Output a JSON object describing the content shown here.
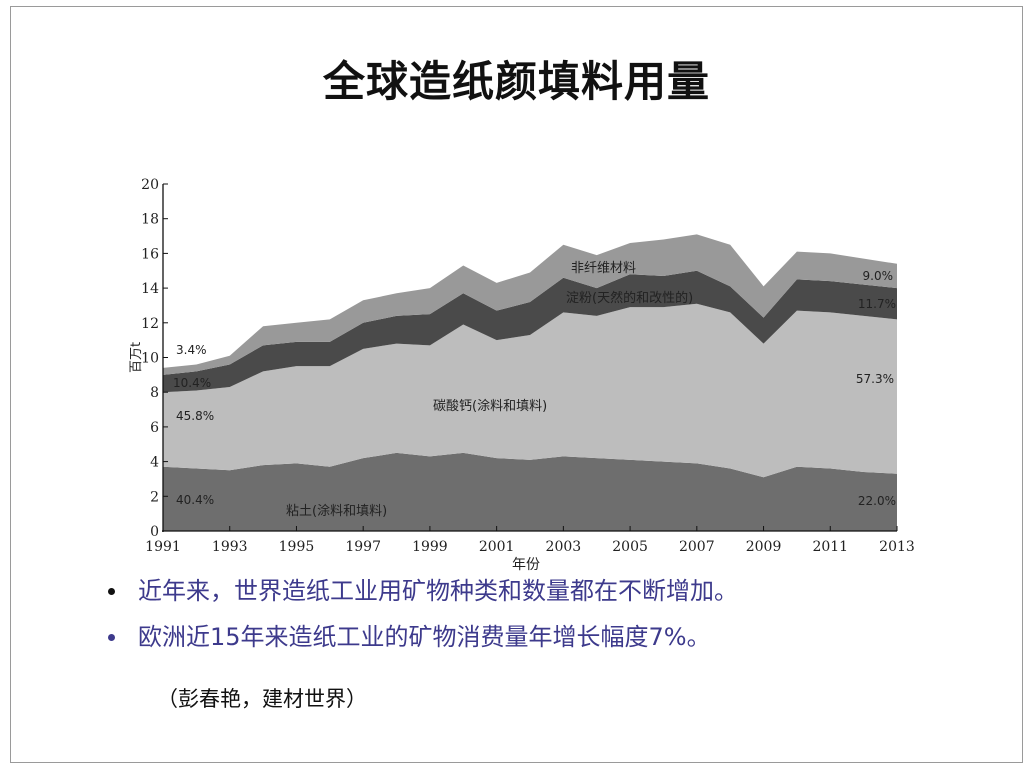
{
  "slide": {
    "title": "全球造纸颜填料用量",
    "bullets": [
      {
        "text": "近年来，世界造纸工业用矿物种类和数量都在不断增加。",
        "dot_color": "#111111"
      },
      {
        "text": "欧洲近15年来造纸工业的矿物消费量年增长幅度7%。",
        "dot_color": "#3d3a8c"
      }
    ],
    "citation": "（彭春艳，建材世界）"
  },
  "chart_data": {
    "type": "area",
    "stacked": true,
    "x": [
      1991,
      1992,
      1993,
      1994,
      1995,
      1996,
      1997,
      1998,
      1999,
      2000,
      2001,
      2002,
      2003,
      2004,
      2005,
      2006,
      2007,
      2008,
      2009,
      2010,
      2011,
      2012,
      2013
    ],
    "xticks": [
      "1991",
      "1993",
      "1995",
      "1997",
      "1999",
      "2001",
      "2003",
      "2005",
      "2007",
      "2009",
      "2011",
      "2013"
    ],
    "yticks": [
      "0",
      "2",
      "4",
      "6",
      "8",
      "10",
      "12",
      "14",
      "16",
      "18",
      "20"
    ],
    "xlabel": "年份",
    "ylabel": "百万t",
    "ylim": [
      0,
      20
    ],
    "series": [
      {
        "name": "粘土(涂料和填料)",
        "color": "#6e6e6e",
        "values": [
          3.7,
          3.6,
          3.5,
          3.8,
          3.9,
          3.7,
          4.2,
          4.5,
          4.3,
          4.5,
          4.2,
          4.1,
          4.3,
          4.2,
          4.1,
          4.0,
          3.9,
          3.6,
          3.1,
          3.7,
          3.6,
          3.4,
          3.3
        ]
      },
      {
        "name": "碳酸钙(涂料和填料)",
        "color": "#bdbdbd",
        "values": [
          4.3,
          4.5,
          4.8,
          5.4,
          5.6,
          5.8,
          6.3,
          6.3,
          6.4,
          7.4,
          6.8,
          7.2,
          8.3,
          8.2,
          8.8,
          8.9,
          9.2,
          9.0,
          7.7,
          9.0,
          9.0,
          9.0,
          8.9
        ]
      },
      {
        "name": "淀粉(天然的和改性的)",
        "color": "#4a4a4a",
        "values": [
          1.0,
          1.1,
          1.3,
          1.5,
          1.4,
          1.4,
          1.5,
          1.6,
          1.8,
          1.8,
          1.7,
          1.9,
          2.0,
          1.6,
          1.9,
          1.8,
          1.9,
          1.5,
          1.5,
          1.8,
          1.8,
          1.8,
          1.8
        ]
      },
      {
        "name": "非纤维材料",
        "color": "#999999",
        "values": [
          0.4,
          0.4,
          0.5,
          1.1,
          1.1,
          1.3,
          1.3,
          1.3,
          1.5,
          1.6,
          1.6,
          1.7,
          1.9,
          1.9,
          1.8,
          2.1,
          2.1,
          2.4,
          1.8,
          1.6,
          1.6,
          1.5,
          1.4
        ]
      }
    ],
    "annotations": [
      {
        "text": "3.4%"
      },
      {
        "text": "10.4%"
      },
      {
        "text": "45.8%"
      },
      {
        "text": "40.4%"
      },
      {
        "text": "9.0%"
      },
      {
        "text": "11.7%"
      },
      {
        "text": "57.3%"
      },
      {
        "text": "22.0%"
      },
      {
        "text": "非纤维材料"
      },
      {
        "text": "淀粉(天然的和改性的)"
      },
      {
        "text": "碳酸钙(涂料和填料)"
      },
      {
        "text": "粘土(涂料和填料)"
      }
    ]
  }
}
